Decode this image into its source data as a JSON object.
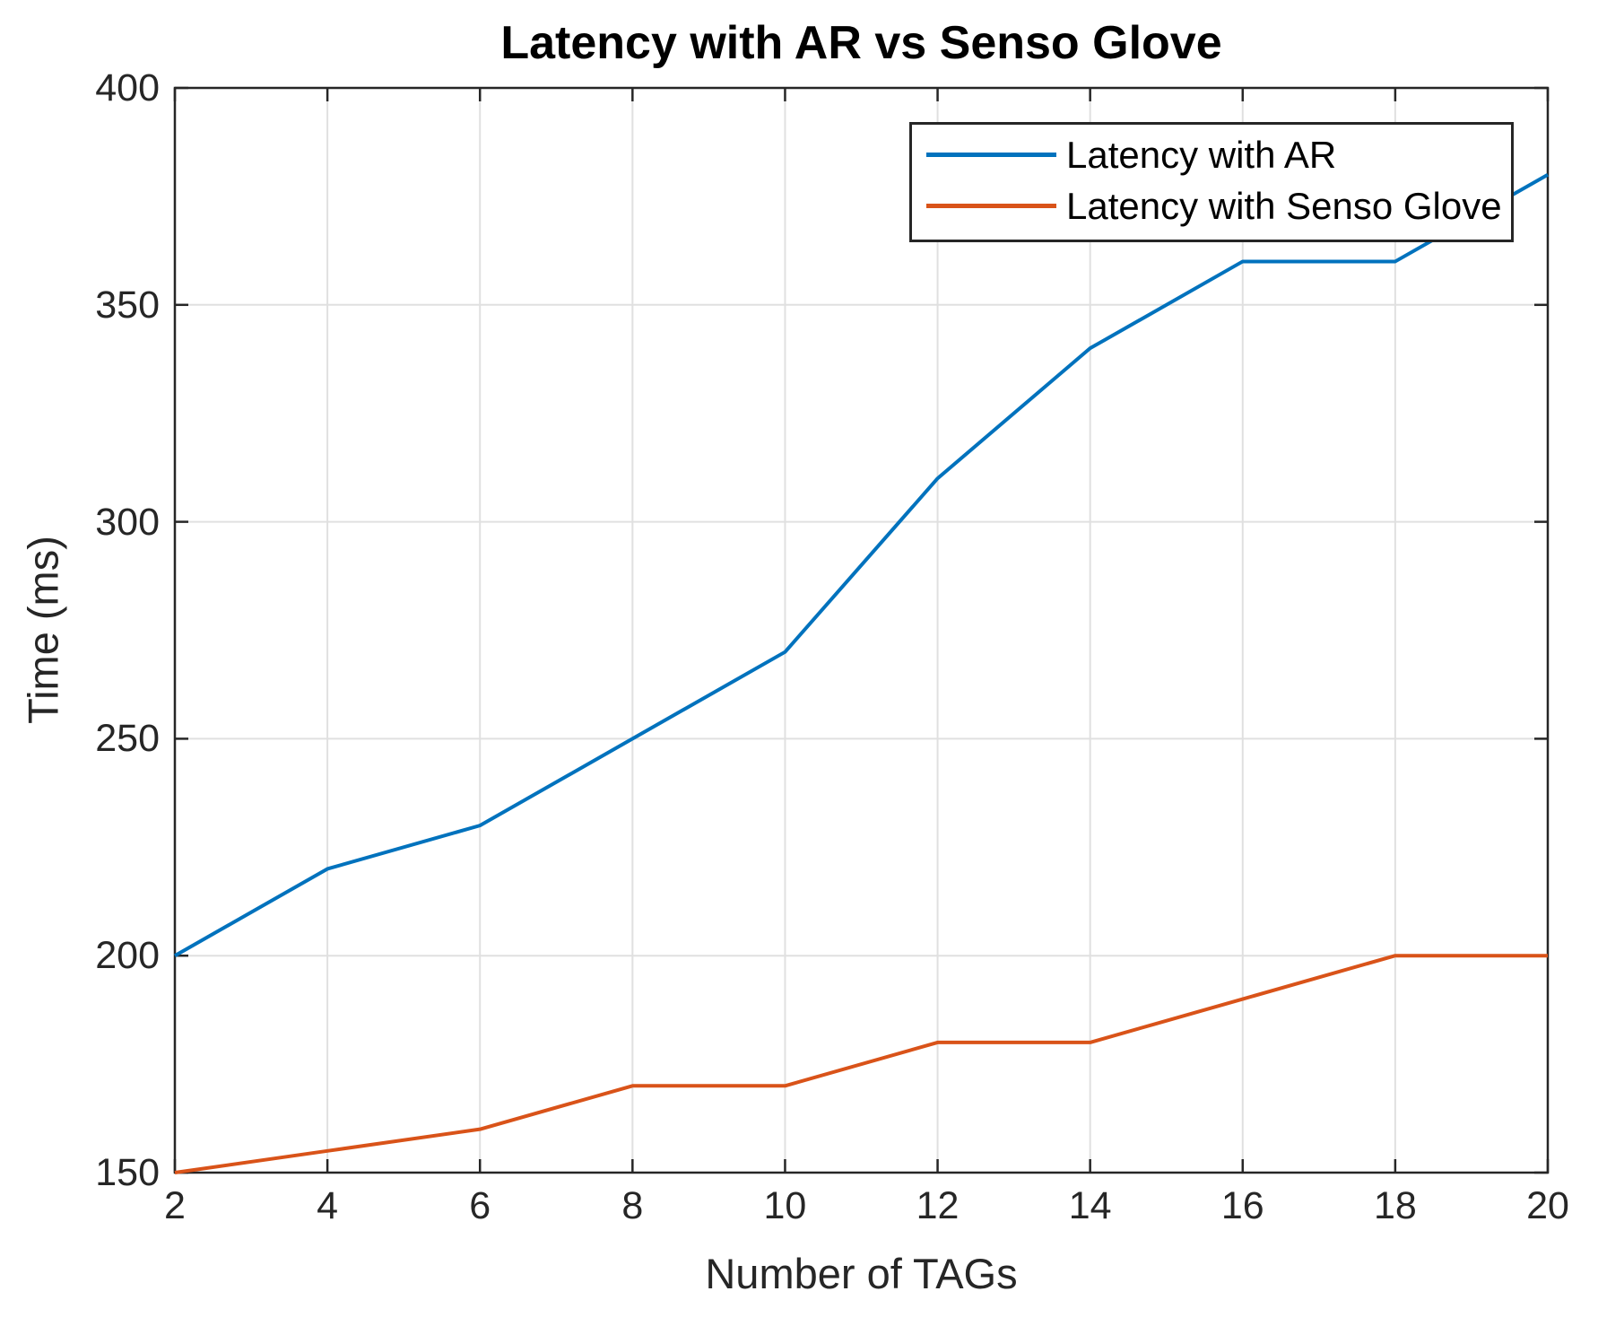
{
  "chart_data": {
    "type": "line",
    "title": "Latency with AR vs Senso Glove",
    "xlabel": "Number of TAGs",
    "ylabel": "Time (ms)",
    "x": [
      2,
      4,
      6,
      8,
      10,
      12,
      14,
      16,
      18,
      20
    ],
    "series": [
      {
        "name": "Latency with AR",
        "color": "#0072BD",
        "values": [
          200,
          220,
          230,
          250,
          270,
          310,
          340,
          360,
          360,
          380
        ]
      },
      {
        "name": "Latency with Senso Glove",
        "color": "#D95319",
        "values": [
          150,
          155,
          160,
          170,
          170,
          180,
          180,
          190,
          200,
          200
        ]
      }
    ],
    "xlim": [
      2,
      20
    ],
    "ylim": [
      150,
      400
    ],
    "xticks": [
      2,
      4,
      6,
      8,
      10,
      12,
      14,
      16,
      18,
      20
    ],
    "yticks": [
      150,
      200,
      250,
      300,
      350,
      400
    ],
    "grid": true,
    "legend_position": "top-right",
    "axis_color": "#262626",
    "grid_color": "#e0e0e0",
    "background_color": "#ffffff"
  }
}
